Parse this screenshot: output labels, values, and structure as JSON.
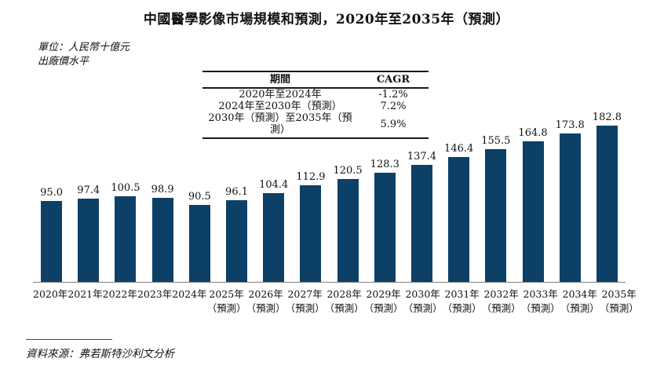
{
  "title": "中國醫學影像市場規模和預測，2020年至2035年（預測）",
  "unit_note": {
    "line1": "單位：人民幣十億元",
    "line2": "出廠價水平"
  },
  "cagr_table": {
    "headers": [
      "期間",
      "CAGR"
    ],
    "rows": [
      [
        "2020年至2024年",
        "-1.2%"
      ],
      [
        "2024年至2030年（預測）",
        "7.2%"
      ],
      [
        "2030年（預測）至2035年（預測）",
        "5.9%"
      ]
    ]
  },
  "chart_data": {
    "type": "bar",
    "title": "中國醫學影像市場規模和預測，2020年至2035年（預測）",
    "unit": "人民幣十億元（出廠價水平）",
    "categories": [
      "2020年",
      "2021年",
      "2022年",
      "2023年",
      "2024年",
      "2025年",
      "2026年",
      "2027年",
      "2028年",
      "2029年",
      "2030年",
      "2031年",
      "2032年",
      "2033年",
      "2034年",
      "2035年"
    ],
    "category_sublabels": [
      "",
      "",
      "",
      "",
      "",
      "（預測）",
      "（預測）",
      "（預測）",
      "（預測）",
      "（預測）",
      "（預測）",
      "（預測）",
      "（預測）",
      "（預測）",
      "（預測）",
      "（預測）"
    ],
    "values": [
      95.0,
      97.4,
      100.5,
      98.9,
      90.5,
      96.1,
      104.4,
      112.9,
      120.5,
      128.3,
      137.4,
      146.4,
      155.5,
      164.8,
      173.8,
      182.8
    ],
    "value_labels": [
      "95.0",
      "97.4",
      "100.5",
      "98.9",
      "90.5",
      "96.1",
      "104.4",
      "112.9",
      "120.5",
      "128.3",
      "137.4",
      "146.4",
      "155.5",
      "164.8",
      "173.8",
      "182.8"
    ],
    "bar_color": "#0d4066",
    "ylim": [
      0,
      190
    ],
    "grid": false,
    "legend": "none"
  },
  "source": "資料來源：弗若斯特沙利文分析"
}
